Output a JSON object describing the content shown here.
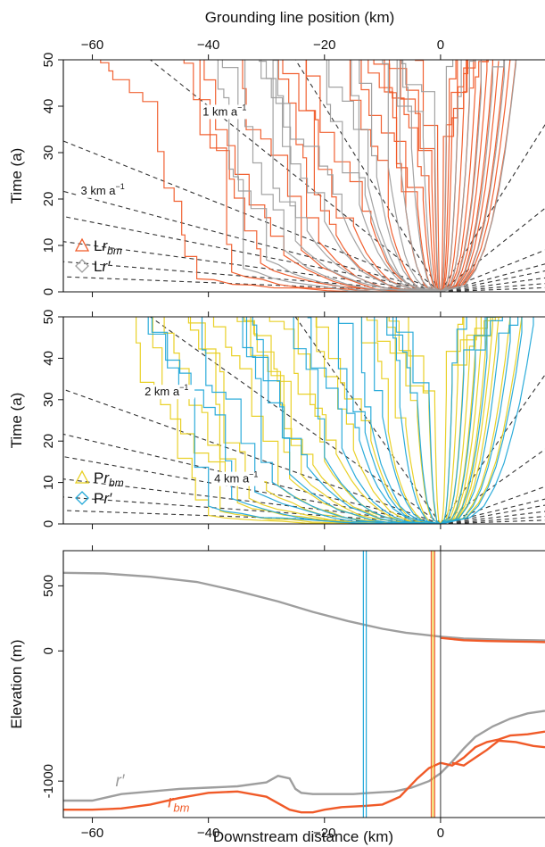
{
  "figure": {
    "top_axis_label": "Grounding line position (km)",
    "bottom_axis_label": "Downstream distance (km)"
  },
  "colors": {
    "orange": "#F05A28",
    "gray": "#9E9E9E",
    "yellow": "#E8CF1F",
    "blue": "#22A8D8",
    "dark_gray": "#555555",
    "dashed": "#333333"
  },
  "chart_data": [
    {
      "type": "line",
      "panel": "top",
      "xlabel": "Grounding line position (km)",
      "ylabel": "Time (a)",
      "xlim": [
        -65,
        18
      ],
      "ylim": [
        0,
        50
      ],
      "x_ticks": [
        -60,
        -40,
        -20,
        0
      ],
      "y_ticks": [
        0,
        10,
        20,
        30,
        40,
        50
      ],
      "legend_position": "bottom-left",
      "legend": [
        {
          "marker": "triangle",
          "prefix": "L",
          "italic": "r",
          "sub": "bm",
          "color": "orange"
        },
        {
          "marker": "diamond",
          "prefix": "L",
          "italic": "r′",
          "sub": "",
          "color": "gray"
        }
      ],
      "speed_labels": [
        {
          "text": "1 km a",
          "sup": "−1",
          "x": -41,
          "y": 38
        },
        {
          "text": "3 km a",
          "sup": "−1",
          "x": -62,
          "y": 21
        }
      ],
      "speed_lines": [
        0.5,
        1,
        2,
        3,
        4,
        6,
        10,
        20,
        -10,
        -20,
        -6,
        -4,
        -3,
        -2,
        -1,
        -0.5
      ],
      "series": [
        {
          "color": "orange",
          "spread_offsets": [
            -42,
            -36,
            -31,
            -27,
            -24,
            -21,
            -18,
            -15,
            -12,
            -9,
            -6,
            -4,
            -3,
            -2,
            -1.5,
            -1,
            -0.5,
            0.5,
            1,
            1.5,
            2,
            3,
            4,
            5,
            6,
            7,
            8,
            9,
            10,
            11,
            12,
            13
          ],
          "t_stall": [
            3,
            4,
            6,
            8,
            9,
            11,
            12,
            14,
            15,
            16,
            18,
            19,
            20,
            22,
            24,
            26,
            28,
            30,
            32,
            34,
            36,
            38,
            40,
            42,
            44,
            46,
            48,
            49,
            50,
            50,
            50,
            50
          ]
        },
        {
          "color": "gray",
          "spread_offsets": [
            -34,
            -30,
            -27,
            -25,
            -23,
            -20,
            -17,
            -14,
            -13,
            -12.5,
            -11,
            -9,
            -7,
            -5,
            -3,
            -1,
            1,
            3,
            5,
            7,
            9,
            11,
            13
          ],
          "t_stall": [
            5,
            7,
            9,
            11,
            13,
            15,
            17,
            19,
            21,
            23,
            25,
            27,
            29,
            31,
            33,
            35,
            37,
            39,
            41,
            43,
            45,
            47,
            49
          ]
        }
      ]
    },
    {
      "type": "line",
      "panel": "middle",
      "xlabel": "",
      "ylabel": "Time (a)",
      "xlim": [
        -65,
        18
      ],
      "ylim": [
        0,
        50
      ],
      "x_ticks": [
        -60,
        -40,
        -20,
        0
      ],
      "y_ticks": [
        0,
        10,
        20,
        30,
        40,
        50
      ],
      "legend_position": "bottom-left",
      "legend": [
        {
          "marker": "triangle",
          "prefix": "P",
          "italic": "r",
          "sub": "bm",
          "color": "yellow"
        },
        {
          "marker": "diamond",
          "prefix": "P",
          "italic": "r′",
          "sub": "",
          "color": "blue"
        }
      ],
      "speed_labels": [
        {
          "text": "2 km a",
          "sup": "−1",
          "x": -51,
          "y": 31
        },
        {
          "text": "4 km a",
          "sup": "−1",
          "x": -39,
          "y": 10
        }
      ],
      "speed_lines": [
        0.5,
        1,
        2,
        3,
        4,
        6,
        10,
        20,
        -10,
        -20,
        -6,
        -4,
        -3,
        -2,
        -1,
        -0.5
      ],
      "series": [
        {
          "color": "yellow",
          "spread_offsets": [
            -40,
            -38,
            -35,
            -33,
            -30,
            -28,
            -26,
            -24,
            -22,
            -20,
            -18,
            -15,
            -12,
            -9,
            -6,
            -4,
            -2,
            -1,
            1,
            2,
            3,
            4,
            5,
            6,
            7,
            8,
            9,
            10,
            12,
            14
          ],
          "t_stall": [
            2,
            3,
            5,
            6,
            8,
            9,
            11,
            12,
            14,
            15,
            17,
            18,
            20,
            22,
            24,
            26,
            28,
            30,
            32,
            34,
            36,
            38,
            40,
            42,
            44,
            46,
            48,
            50,
            50,
            50
          ]
        },
        {
          "color": "blue",
          "spread_offsets": [
            -40,
            -36,
            -32,
            -29,
            -26,
            -23,
            -20,
            -17,
            -14,
            -13,
            -12,
            -10,
            -7,
            -4,
            -2,
            2,
            4,
            6,
            8,
            10,
            12,
            14,
            16
          ],
          "t_stall": [
            4,
            6,
            8,
            10,
            12,
            14,
            16,
            18,
            20,
            22,
            24,
            26,
            28,
            30,
            32,
            34,
            36,
            38,
            40,
            42,
            44,
            46,
            48
          ]
        }
      ]
    },
    {
      "type": "line",
      "panel": "bottom",
      "xlabel": "Downstream distance (km)",
      "ylabel": "Elevation (m)",
      "xlim": [
        -65,
        18
      ],
      "ylim": [
        -1280,
        770
      ],
      "x_ticks": [
        -60,
        -40,
        -20,
        0
      ],
      "y_ticks": [
        500,
        0,
        -1000
      ],
      "y_tick_labels": [
        "500",
        "0",
        "-1000"
      ],
      "series": [
        {
          "name": "r′",
          "color": "gray",
          "x": [
            -65,
            -58,
            -50,
            -42,
            -35,
            -28,
            -22,
            -16,
            -10,
            -6,
            -3,
            0,
            4,
            8,
            12,
            16,
            18
          ],
          "y": [
            600,
            595,
            570,
            530,
            460,
            380,
            300,
            230,
            170,
            140,
            125,
            110,
            95,
            90,
            85,
            82,
            80
          ]
        },
        {
          "color": "orange",
          "x": [
            0,
            4,
            8,
            12,
            16,
            18
          ],
          "y": [
            100,
            82,
            76,
            73,
            70,
            68
          ]
        },
        {
          "name": "r′",
          "color": "gray",
          "x": [
            -65,
            -60,
            -55,
            -50,
            -45,
            -40,
            -35,
            -30,
            -28,
            -26,
            -25,
            -24,
            -22,
            -20,
            -15,
            -12,
            -8,
            -5,
            -2,
            0,
            2,
            4,
            6,
            9,
            12,
            15,
            18
          ],
          "y": [
            -1150,
            -1150,
            -1100,
            -1080,
            -1060,
            -1050,
            -1040,
            -1010,
            -960,
            -980,
            -1060,
            -1090,
            -1100,
            -1100,
            -1100,
            -1090,
            -1080,
            -1050,
            -1000,
            -940,
            -850,
            -750,
            -660,
            -580,
            -520,
            -480,
            -460
          ]
        },
        {
          "name": "r_bm",
          "color": "orange",
          "x": [
            -65,
            -60,
            -55,
            -50,
            -45,
            -40,
            -35,
            -30,
            -26,
            -24,
            -22,
            -20,
            -17,
            -13,
            -10,
            -7,
            -4,
            -2,
            0,
            2,
            4,
            6,
            8,
            10,
            12,
            15,
            18
          ],
          "y": [
            -1220,
            -1220,
            -1210,
            -1180,
            -1130,
            -1090,
            -1080,
            -1120,
            -1220,
            -1240,
            -1240,
            -1220,
            -1200,
            -1190,
            -1180,
            -1120,
            -980,
            -900,
            -860,
            -880,
            -820,
            -740,
            -700,
            -680,
            -650,
            -640,
            -620
          ]
        },
        {
          "color": "orange",
          "x": [
            2,
            4,
            6,
            8,
            10,
            13,
            16,
            18
          ],
          "y": [
            -860,
            -880,
            -820,
            -760,
            -690,
            -700,
            -730,
            -740
          ]
        }
      ],
      "curve_labels": [
        {
          "text": "r′",
          "color": "gray",
          "x": -56,
          "y": -1040
        },
        {
          "text": "r",
          "sub": "bm",
          "color": "orange",
          "x": -47,
          "y": -1200
        }
      ],
      "vertical_lines": [
        {
          "x": -13.3,
          "color": "blue"
        },
        {
          "x": -12.8,
          "color": "blue"
        },
        {
          "x": -1.6,
          "color": "orange"
        },
        {
          "x": -1.3,
          "color": "yellow"
        },
        {
          "x": -1.0,
          "color": "orange"
        },
        {
          "x": 0,
          "color": "dark_gray"
        }
      ]
    }
  ]
}
